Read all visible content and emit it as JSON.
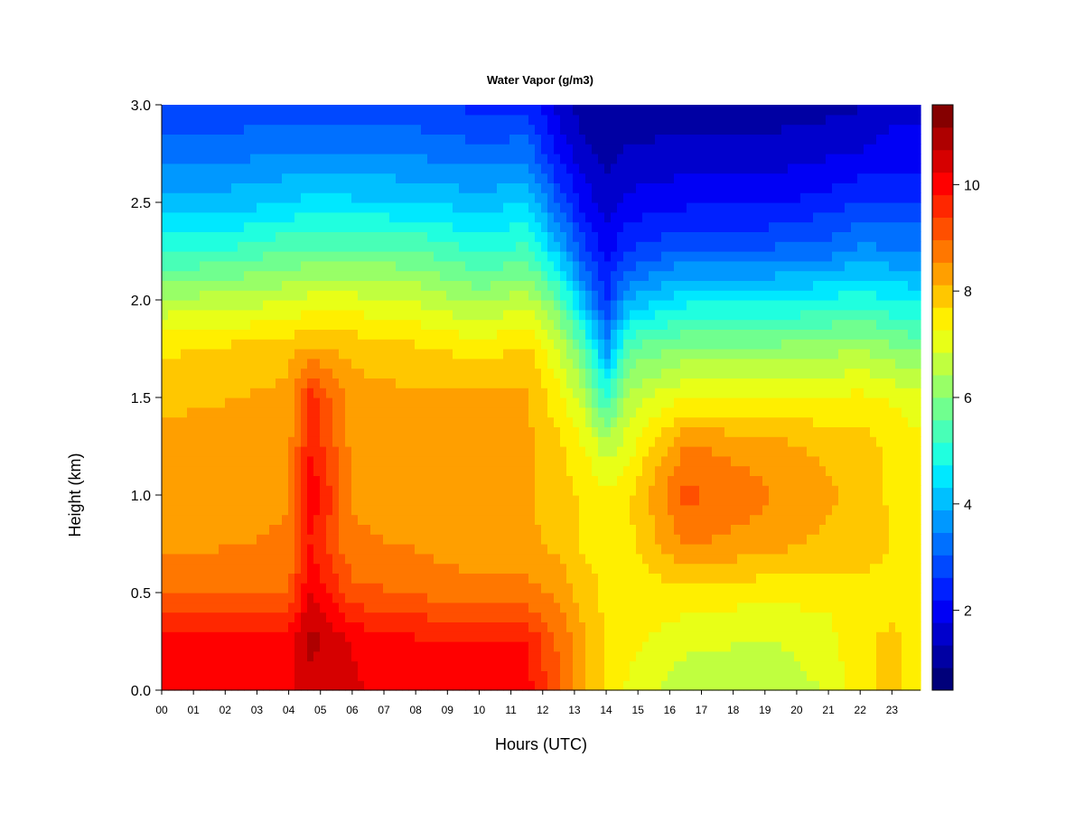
{
  "chart_data": {
    "type": "heatmap",
    "title": "Water Vapor (g/m3)",
    "xlabel": "Hours (UTC)",
    "ylabel": "Height (km)",
    "xlim": [
      0,
      23.9
    ],
    "ylim": [
      0,
      3.0
    ],
    "x_ticks": [
      "00",
      "01",
      "02",
      "03",
      "04",
      "05",
      "06",
      "07",
      "08",
      "09",
      "10",
      "11",
      "12",
      "13",
      "14",
      "15",
      "16",
      "17",
      "18",
      "19",
      "20",
      "21",
      "22",
      "23"
    ],
    "y_ticks": [
      "0.0",
      "0.5",
      "1.0",
      "1.5",
      "2.0",
      "2.5",
      "3.0"
    ],
    "colorbar": {
      "range": [
        0.5,
        11.5
      ],
      "ticks": [
        2,
        4,
        6,
        8,
        10
      ],
      "tick_labels": [
        "2",
        "4",
        "6",
        "8",
        "10"
      ],
      "colors": [
        "#00007a",
        "#0000a3",
        "#0000cc",
        "#0000f5",
        "#0020ff",
        "#0048ff",
        "#0070ff",
        "#0098ff",
        "#00c0ff",
        "#00e8ff",
        "#20ffdf",
        "#48ffb7",
        "#70ff8f",
        "#98ff67",
        "#c0ff3f",
        "#e8ff17",
        "#ffef00",
        "#ffc700",
        "#ff9f00",
        "#ff7700",
        "#ff4f00",
        "#ff2700",
        "#ff0000",
        "#d60000",
        "#ae0000",
        "#850000"
      ]
    },
    "hours": [
      0,
      2,
      4,
      4.7,
      6,
      8,
      10,
      11.5,
      12.5,
      13.3,
      14,
      14.7,
      16.5,
      19,
      21,
      22,
      23,
      23.9
    ],
    "heights_km": [
      0,
      0.25,
      0.5,
      0.75,
      1.0,
      1.25,
      1.5,
      1.75,
      2.0,
      2.25,
      2.5,
      2.75,
      3.0
    ],
    "values_g_m3": [
      [
        10.2,
        10.0,
        9.0,
        8.4,
        8.5,
        8.3,
        8.0,
        7.6,
        6.5,
        5.1,
        4.1,
        3.3,
        2.6
      ],
      [
        10.2,
        10.1,
        9.0,
        8.5,
        8.4,
        8.3,
        8.1,
        7.8,
        6.6,
        5.2,
        4.1,
        3.3,
        2.7
      ],
      [
        10.2,
        10.1,
        9.0,
        8.6,
        8.5,
        8.4,
        8.2,
        8.0,
        6.8,
        5.6,
        4.3,
        3.5,
        2.8
      ],
      [
        10.5,
        10.8,
        10.3,
        9.8,
        10.2,
        9.8,
        9.6,
        8.2,
        7.0,
        5.6,
        4.5,
        3.5,
        2.8
      ],
      [
        10.3,
        10.2,
        9.1,
        8.6,
        8.5,
        8.4,
        8.3,
        8.0,
        7.0,
        5.7,
        4.4,
        3.5,
        2.8
      ],
      [
        10.0,
        9.9,
        8.9,
        8.5,
        8.4,
        8.3,
        8.2,
        7.8,
        6.8,
        5.6,
        4.3,
        3.4,
        2.7
      ],
      [
        10.1,
        9.9,
        8.7,
        8.2,
        8.2,
        8.3,
        8.2,
        7.5,
        6.3,
        5.1,
        4.1,
        3.2,
        2.5
      ],
      [
        10.0,
        9.8,
        8.7,
        8.2,
        8.2,
        8.2,
        8.2,
        7.8,
        6.7,
        5.3,
        4.3,
        3.3,
        2.5
      ],
      [
        9.0,
        8.9,
        8.4,
        8.0,
        7.9,
        7.8,
        7.4,
        6.9,
        5.6,
        4.1,
        3.0,
        2.1,
        1.6
      ],
      [
        8.1,
        8.2,
        7.9,
        7.6,
        7.6,
        7.3,
        6.6,
        5.6,
        3.9,
        2.8,
        2.0,
        1.5,
        1.1
      ],
      [
        7.6,
        7.6,
        7.6,
        7.5,
        7.4,
        6.6,
        5.1,
        3.6,
        2.6,
        2.0,
        1.6,
        1.2,
        1.0
      ],
      [
        7.2,
        7.4,
        7.4,
        7.6,
        7.6,
        7.1,
        6.6,
        5.6,
        3.9,
        2.6,
        1.9,
        1.4,
        1.1
      ],
      [
        6.5,
        7.0,
        7.5,
        8.6,
        9.1,
        8.6,
        7.3,
        6.1,
        4.6,
        3.1,
        2.1,
        1.5,
        1.1
      ],
      [
        6.5,
        6.8,
        7.4,
        8.3,
        8.6,
        8.3,
        7.3,
        6.1,
        4.6,
        3.1,
        2.1,
        1.5,
        1.1
      ],
      [
        6.9,
        7.1,
        7.4,
        8.0,
        8.2,
        8.0,
        7.3,
        6.3,
        4.8,
        3.3,
        2.4,
        1.7,
        1.2
      ],
      [
        7.6,
        7.6,
        7.6,
        7.9,
        8.0,
        7.9,
        7.4,
        6.4,
        5.0,
        3.6,
        2.6,
        1.8,
        1.3
      ],
      [
        7.8,
        7.8,
        7.5,
        7.7,
        7.6,
        7.6,
        7.2,
        6.1,
        4.7,
        3.5,
        2.6,
        2.0,
        1.6
      ],
      [
        7.5,
        7.5,
        7.3,
        7.4,
        7.4,
        7.4,
        7.0,
        5.9,
        4.6,
        3.5,
        2.6,
        2.0,
        1.6
      ]
    ]
  }
}
